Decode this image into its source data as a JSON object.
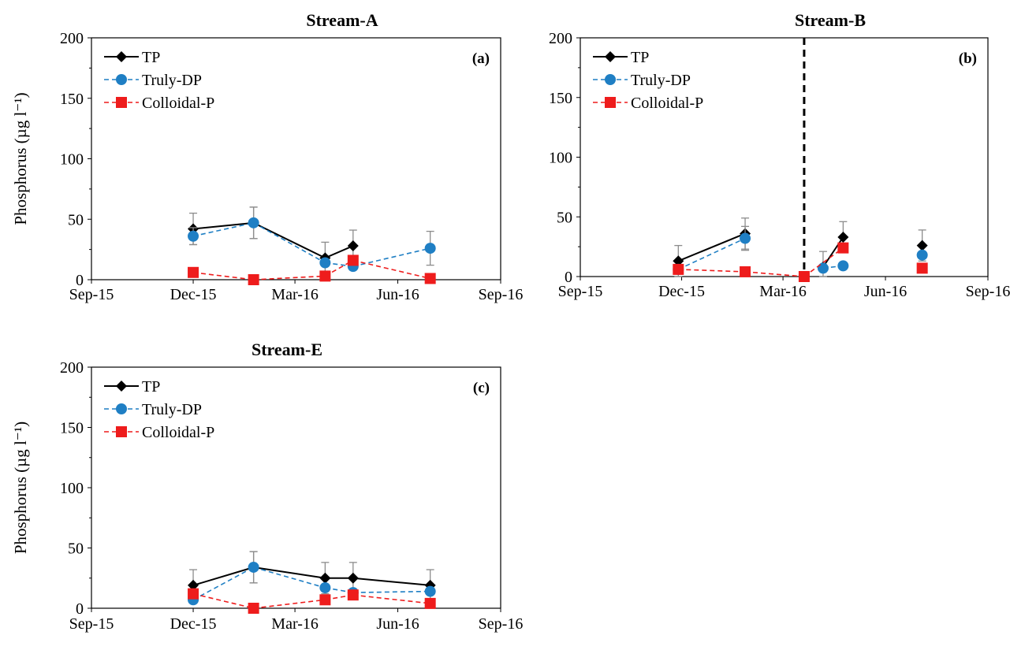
{
  "ylabel": "Phosphorus (µg l⁻¹)",
  "x_ticks": [
    "Sep-15",
    "Dec-15",
    "Mar-16",
    "Jun-16",
    "Sep-16"
  ],
  "y_ticks": [
    0,
    50,
    100,
    150,
    200
  ],
  "colors": {
    "TP": "#000000",
    "Truly-DP": "#1f7fc4",
    "Colloidal-P": "#ee1c1c",
    "error_bar": "#8c8c8c"
  },
  "chart_data": [
    {
      "type": "line",
      "title": "Stream-A",
      "panel_label": "(a)",
      "xlim": [
        "Sep-15",
        "Sep-16"
      ],
      "ylim": [
        0,
        200
      ],
      "legend": "top-left",
      "series": [
        {
          "name": "TP",
          "line": "solid",
          "marker": "diamond",
          "points": [
            [
              "2015-12-01",
              42,
              13
            ],
            [
              "2016-01-24",
              47,
              13
            ],
            [
              "2016-03-28",
              18,
              13
            ],
            [
              "2016-04-22",
              28,
              13
            ]
          ]
        },
        {
          "name": "Truly-DP",
          "line": "dashed",
          "marker": "circle",
          "points": [
            [
              "2015-12-01",
              36,
              7
            ],
            [
              "2016-01-24",
              47,
              13
            ],
            [
              "2016-03-28",
              14,
              null
            ],
            [
              "2016-04-22",
              11,
              null
            ],
            [
              "2016-06-30",
              26,
              14
            ]
          ]
        },
        {
          "name": "Colloidal-P",
          "line": "dashed",
          "marker": "square",
          "points": [
            [
              "2015-12-01",
              6,
              null
            ],
            [
              "2016-01-24",
              0,
              null
            ],
            [
              "2016-03-28",
              3,
              null
            ],
            [
              "2016-04-22",
              16,
              null
            ],
            [
              "2016-06-30",
              1,
              null
            ]
          ]
        }
      ]
    },
    {
      "type": "line",
      "title": "Stream-B",
      "panel_label": "(b)",
      "xlim": [
        "Sep-15",
        "Sep-16"
      ],
      "ylim": [
        0,
        200
      ],
      "legend": "top-left",
      "vline": "2016-03-20",
      "series": [
        {
          "name": "TP",
          "line": "solid",
          "marker": "diamond",
          "points": [
            [
              "2015-11-28",
              13,
              13
            ],
            [
              "2016-01-27",
              36,
              13
            ],
            [
              "2016-04-06",
              8,
              13
            ],
            [
              "2016-04-24",
              33,
              13
            ],
            [
              "2016-07-04",
              26,
              13
            ]
          ]
        },
        {
          "name": "Truly-DP",
          "line": "dashed",
          "marker": "circle",
          "points": [
            [
              "2015-11-28",
              6,
              null
            ],
            [
              "2016-01-27",
              32,
              10
            ],
            [
              "2016-04-06",
              7,
              null
            ],
            [
              "2016-04-24",
              9,
              null
            ],
            [
              "2016-07-04",
              18,
              null
            ]
          ]
        },
        {
          "name": "Colloidal-P",
          "line": "dashed",
          "marker": "square",
          "points": [
            [
              "2015-11-28",
              6,
              null
            ],
            [
              "2016-01-27",
              4,
              null
            ],
            [
              "2016-03-20",
              0,
              null
            ],
            [
              "2016-04-24",
              24,
              null
            ],
            [
              "2016-07-04",
              7,
              null
            ]
          ]
        }
      ]
    },
    {
      "type": "line",
      "title": "Stream-E",
      "panel_label": "(c)",
      "xlim": [
        "Sep-15",
        "Sep-16"
      ],
      "ylim": [
        0,
        200
      ],
      "legend": "top-left",
      "series": [
        {
          "name": "TP",
          "line": "solid",
          "marker": "diamond",
          "points": [
            [
              "2015-12-01",
              19,
              13
            ],
            [
              "2016-01-24",
              34,
              13
            ],
            [
              "2016-03-28",
              25,
              13
            ],
            [
              "2016-04-22",
              25,
              13
            ],
            [
              "2016-06-30",
              19,
              13
            ]
          ]
        },
        {
          "name": "Truly-DP",
          "line": "dashed",
          "marker": "circle",
          "points": [
            [
              "2015-12-01",
              7,
              null
            ],
            [
              "2016-01-24",
              34,
              13
            ],
            [
              "2016-03-28",
              17,
              null
            ],
            [
              "2016-04-22",
              13,
              null
            ],
            [
              "2016-06-30",
              14,
              null
            ]
          ]
        },
        {
          "name": "Colloidal-P",
          "line": "dashed",
          "marker": "square",
          "points": [
            [
              "2015-12-01",
              12,
              null
            ],
            [
              "2016-01-24",
              0,
              null
            ],
            [
              "2016-03-28",
              7,
              null
            ],
            [
              "2016-04-22",
              11,
              null
            ],
            [
              "2016-06-30",
              4,
              null
            ]
          ]
        }
      ]
    }
  ]
}
